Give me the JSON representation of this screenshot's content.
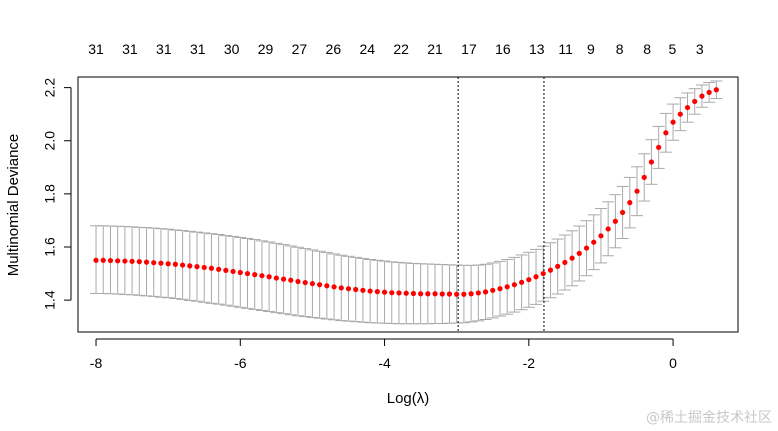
{
  "chart_data": {
    "type": "scatter",
    "title": "",
    "xlabel": "Log(λ)",
    "ylabel": "Multinomial Deviance",
    "xlim": [
      -8.25,
      0.9
    ],
    "ylim": [
      1.28,
      2.24
    ],
    "x_ticks": [
      -8,
      -6,
      -4,
      -2,
      0
    ],
    "y_ticks": [
      1.4,
      1.6,
      1.8,
      2.0,
      2.2
    ],
    "top_axis_labels": [
      {
        "x": -8.0,
        "label": "31"
      },
      {
        "x": -7.53,
        "label": "31"
      },
      {
        "x": -7.06,
        "label": "31"
      },
      {
        "x": -6.59,
        "label": "31"
      },
      {
        "x": -6.12,
        "label": "30"
      },
      {
        "x": -5.65,
        "label": "29"
      },
      {
        "x": -5.18,
        "label": "27"
      },
      {
        "x": -4.71,
        "label": "26"
      },
      {
        "x": -4.24,
        "label": "24"
      },
      {
        "x": -3.77,
        "label": "22"
      },
      {
        "x": -3.3,
        "label": "21"
      },
      {
        "x": -2.83,
        "label": "17"
      },
      {
        "x": -2.36,
        "label": "16"
      },
      {
        "x": -1.89,
        "label": "13"
      },
      {
        "x": -1.49,
        "label": "11"
      },
      {
        "x": -1.14,
        "label": "9"
      },
      {
        "x": -0.74,
        "label": "8"
      },
      {
        "x": -0.36,
        "label": "8"
      },
      {
        "x": -0.01,
        "label": "5"
      },
      {
        "x": 0.37,
        "label": "3"
      }
    ],
    "vlines": [
      -2.98,
      -1.79
    ],
    "points": [
      [
        -8.0,
        1.55,
        1.425,
        1.68
      ],
      [
        -7.9,
        1.55,
        1.425,
        1.68
      ],
      [
        -7.8,
        1.549,
        1.424,
        1.679
      ],
      [
        -7.7,
        1.548,
        1.423,
        1.678
      ],
      [
        -7.6,
        1.547,
        1.421,
        1.677
      ],
      [
        -7.5,
        1.546,
        1.42,
        1.676
      ],
      [
        -7.4,
        1.545,
        1.418,
        1.674
      ],
      [
        -7.3,
        1.543,
        1.416,
        1.673
      ],
      [
        -7.2,
        1.541,
        1.414,
        1.671
      ],
      [
        -7.1,
        1.539,
        1.411,
        1.669
      ],
      [
        -7.0,
        1.537,
        1.409,
        1.667
      ],
      [
        -6.9,
        1.535,
        1.406,
        1.664
      ],
      [
        -6.8,
        1.532,
        1.403,
        1.662
      ],
      [
        -6.7,
        1.529,
        1.399,
        1.659
      ],
      [
        -6.6,
        1.526,
        1.396,
        1.656
      ],
      [
        -6.5,
        1.523,
        1.392,
        1.653
      ],
      [
        -6.4,
        1.52,
        1.388,
        1.65
      ],
      [
        -6.3,
        1.516,
        1.385,
        1.647
      ],
      [
        -6.2,
        1.512,
        1.381,
        1.643
      ],
      [
        -6.1,
        1.508,
        1.377,
        1.64
      ],
      [
        -6.0,
        1.504,
        1.373,
        1.636
      ],
      [
        -5.9,
        1.5,
        1.369,
        1.632
      ],
      [
        -5.8,
        1.496,
        1.365,
        1.628
      ],
      [
        -5.7,
        1.492,
        1.361,
        1.623
      ],
      [
        -5.6,
        1.488,
        1.357,
        1.619
      ],
      [
        -5.5,
        1.483,
        1.353,
        1.614
      ],
      [
        -5.4,
        1.479,
        1.349,
        1.609
      ],
      [
        -5.3,
        1.475,
        1.345,
        1.604
      ],
      [
        -5.2,
        1.47,
        1.341,
        1.599
      ],
      [
        -5.1,
        1.466,
        1.338,
        1.594
      ],
      [
        -5.0,
        1.462,
        1.335,
        1.589
      ],
      [
        -4.9,
        1.458,
        1.332,
        1.584
      ],
      [
        -4.8,
        1.454,
        1.329,
        1.579
      ],
      [
        -4.7,
        1.45,
        1.326,
        1.574
      ],
      [
        -4.6,
        1.446,
        1.323,
        1.569
      ],
      [
        -4.5,
        1.443,
        1.321,
        1.565
      ],
      [
        -4.4,
        1.44,
        1.319,
        1.561
      ],
      [
        -4.3,
        1.437,
        1.317,
        1.557
      ],
      [
        -4.2,
        1.434,
        1.315,
        1.553
      ],
      [
        -4.1,
        1.432,
        1.314,
        1.55
      ],
      [
        -4.0,
        1.43,
        1.313,
        1.547
      ],
      [
        -3.9,
        1.428,
        1.312,
        1.544
      ],
      [
        -3.8,
        1.427,
        1.311,
        1.542
      ],
      [
        -3.7,
        1.426,
        1.311,
        1.54
      ],
      [
        -3.6,
        1.425,
        1.311,
        1.538
      ],
      [
        -3.5,
        1.424,
        1.311,
        1.537
      ],
      [
        -3.4,
        1.424,
        1.311,
        1.536
      ],
      [
        -3.3,
        1.424,
        1.312,
        1.535
      ],
      [
        -3.2,
        1.423,
        1.312,
        1.534
      ],
      [
        -3.1,
        1.423,
        1.313,
        1.533
      ],
      [
        -3.0,
        1.422,
        1.314,
        1.532
      ],
      [
        -2.9,
        1.422,
        1.315,
        1.531
      ],
      [
        -2.8,
        1.424,
        1.318,
        1.531
      ],
      [
        -2.7,
        1.427,
        1.322,
        1.532
      ],
      [
        -2.6,
        1.431,
        1.327,
        1.535
      ],
      [
        -2.5,
        1.437,
        1.333,
        1.54
      ],
      [
        -2.4,
        1.443,
        1.34,
        1.546
      ],
      [
        -2.3,
        1.45,
        1.347,
        1.553
      ],
      [
        -2.2,
        1.458,
        1.355,
        1.561
      ],
      [
        -2.1,
        1.467,
        1.364,
        1.57
      ],
      [
        -2.0,
        1.477,
        1.373,
        1.58
      ],
      [
        -1.9,
        1.488,
        1.384,
        1.591
      ],
      [
        -1.8,
        1.5,
        1.396,
        1.603
      ],
      [
        -1.7,
        1.513,
        1.409,
        1.616
      ],
      [
        -1.6,
        1.527,
        1.423,
        1.63
      ],
      [
        -1.5,
        1.542,
        1.438,
        1.645
      ],
      [
        -1.4,
        1.558,
        1.454,
        1.661
      ],
      [
        -1.3,
        1.576,
        1.472,
        1.679
      ],
      [
        -1.2,
        1.596,
        1.492,
        1.699
      ],
      [
        -1.1,
        1.618,
        1.515,
        1.721
      ],
      [
        -1.0,
        1.642,
        1.54,
        1.745
      ],
      [
        -0.9,
        1.668,
        1.567,
        1.77
      ],
      [
        -0.8,
        1.697,
        1.597,
        1.797
      ],
      [
        -0.7,
        1.73,
        1.632,
        1.828
      ],
      [
        -0.6,
        1.767,
        1.672,
        1.862
      ],
      [
        -0.5,
        1.81,
        1.718,
        1.902
      ],
      [
        -0.4,
        1.862,
        1.773,
        1.951
      ],
      [
        -0.3,
        1.92,
        1.836,
        2.004
      ],
      [
        -0.2,
        1.975,
        1.896,
        2.054
      ],
      [
        -0.1,
        2.03,
        1.957,
        2.103
      ],
      [
        0.0,
        2.07,
        2.002,
        2.138
      ],
      [
        0.1,
        2.1,
        2.038,
        2.162
      ],
      [
        0.2,
        2.125,
        2.07,
        2.18
      ],
      [
        0.3,
        2.148,
        2.1,
        2.196
      ],
      [
        0.4,
        2.168,
        2.126,
        2.21
      ],
      [
        0.5,
        2.182,
        2.145,
        2.219
      ],
      [
        0.6,
        2.192,
        2.159,
        2.225
      ]
    ]
  },
  "watermark": "@稀土掘金技术社区"
}
